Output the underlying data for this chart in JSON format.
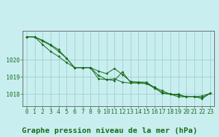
{
  "title": "Graphe pression niveau de la mer (hPa)",
  "bg_color": "#c8eef0",
  "grid_color": "#9dcfcc",
  "line_color": "#1a6b1a",
  "marker_color": "#1a6b1a",
  "xlim": [
    -0.5,
    23.5
  ],
  "ylim": [
    1017.3,
    1021.7
  ],
  "yticks": [
    1018,
    1019,
    1020
  ],
  "xticks": [
    0,
    1,
    2,
    3,
    4,
    5,
    6,
    7,
    8,
    9,
    10,
    11,
    12,
    13,
    14,
    15,
    16,
    17,
    18,
    19,
    20,
    21,
    22,
    23
  ],
  "series": [
    [
      1021.35,
      1021.35,
      1021.1,
      1020.85,
      1020.5,
      1020.1,
      1019.55,
      1019.55,
      1019.55,
      1019.1,
      1018.85,
      1018.8,
      1019.3,
      1018.7,
      1018.7,
      1018.7,
      1018.4,
      1018.05,
      1018.0,
      1018.0,
      1017.85,
      1017.85,
      1017.9,
      1018.05
    ],
    [
      1021.35,
      1021.35,
      1020.9,
      1020.5,
      1020.2,
      1019.85,
      1019.55,
      1019.55,
      1019.55,
      1019.35,
      1019.2,
      1019.5,
      1019.15,
      1018.75,
      1018.7,
      1018.65,
      1018.35,
      1018.1,
      1018.0,
      1017.85,
      1017.85,
      1017.85,
      1017.8,
      1018.05
    ],
    [
      1021.35,
      1021.35,
      1021.15,
      1020.9,
      1020.6,
      1020.1,
      1019.55,
      1019.55,
      1019.55,
      1018.9,
      1018.85,
      1018.9,
      1018.7,
      1018.65,
      1018.65,
      1018.6,
      1018.4,
      1018.2,
      1018.0,
      1017.95,
      1017.85,
      1017.85,
      1017.75,
      1018.05
    ]
  ],
  "title_fontsize": 8,
  "tick_fontsize": 6,
  "xlabel_fontsize": 8
}
